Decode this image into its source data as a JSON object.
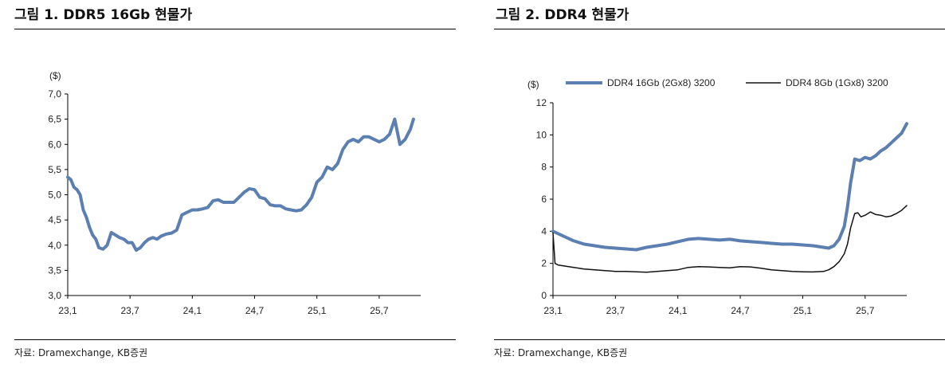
{
  "left": {
    "title": "그림 1. DDR5 16Gb 현물가",
    "source": "자료: Dramexchange, KB증권"
  },
  "right": {
    "title": "그림 2. DDR4 현물가",
    "source": "자료: Dramexchange, KB증권"
  },
  "colors": {
    "primary": "#5b7fb0",
    "secondary": "#111111",
    "axis": "#000000"
  },
  "chart_data": [
    {
      "type": "line",
      "title": "그림 1. DDR5 16Gb 현물가",
      "ylabel": "($)",
      "ylim": [
        3.0,
        7.0
      ],
      "yticks": [
        "3,0",
        "3,5",
        "4,0",
        "4,5",
        "5,0",
        "5,5",
        "6,0",
        "6,5",
        "7,0"
      ],
      "yticks_values": [
        3.0,
        3.5,
        4.0,
        4.5,
        5.0,
        5.5,
        6.0,
        6.5,
        7.0
      ],
      "xlim": [
        0,
        34
      ],
      "xticks": [
        "23,1",
        "23,7",
        "24,1",
        "24,7",
        "25,1",
        "25,7"
      ],
      "xticks_values": [
        0,
        6,
        12,
        18,
        24,
        30
      ],
      "series": [
        {
          "name": "DDR5 16Gb",
          "color": "#5b7fb0",
          "x": [
            0,
            0.3,
            0.6,
            0.9,
            1.2,
            1.5,
            1.8,
            2.1,
            2.4,
            2.7,
            3.0,
            3.4,
            3.8,
            4.2,
            4.6,
            5.0,
            5.4,
            5.8,
            6.2,
            6.6,
            7.0,
            7.4,
            7.8,
            8.2,
            8.6,
            9.0,
            9.5,
            10.0,
            10.5,
            11.0,
            11.5,
            12.0,
            12.5,
            13.0,
            13.5,
            14.0,
            14.5,
            15.0,
            15.5,
            16.0,
            16.5,
            17.0,
            17.5,
            18.0,
            18.5,
            19.0,
            19.5,
            20.0,
            20.5,
            21.0,
            21.5,
            22.0,
            22.5,
            23.0,
            23.5,
            24.0,
            24.5,
            25.0,
            25.5,
            26.0,
            26.5,
            27.0,
            27.5,
            28.0,
            28.5,
            29.0,
            29.5,
            30.0,
            30.5,
            31.0,
            31.5,
            32.0,
            32.5,
            33.0,
            33.3
          ],
          "values": [
            5.35,
            5.3,
            5.15,
            5.1,
            5.0,
            4.7,
            4.55,
            4.35,
            4.2,
            4.12,
            3.95,
            3.92,
            4.0,
            4.25,
            4.2,
            4.15,
            4.12,
            4.05,
            4.05,
            3.9,
            3.95,
            4.05,
            4.12,
            4.15,
            4.12,
            4.18,
            4.22,
            4.24,
            4.3,
            4.6,
            4.65,
            4.7,
            4.7,
            4.72,
            4.75,
            4.88,
            4.9,
            4.85,
            4.85,
            4.85,
            4.95,
            5.05,
            5.12,
            5.1,
            4.95,
            4.92,
            4.8,
            4.78,
            4.78,
            4.72,
            4.7,
            4.68,
            4.7,
            4.8,
            4.95,
            5.25,
            5.35,
            5.55,
            5.5,
            5.62,
            5.9,
            6.05,
            6.1,
            6.05,
            6.15,
            6.15,
            6.1,
            6.05,
            6.1,
            6.2,
            6.5,
            6.0,
            6.1,
            6.3,
            6.5
          ]
        }
      ]
    },
    {
      "type": "line",
      "title": "그림 2. DDR4 현물가",
      "ylabel": "($)",
      "ylim": [
        0,
        12
      ],
      "yticks": [
        "0",
        "2",
        "4",
        "6",
        "8",
        "10",
        "12"
      ],
      "yticks_values": [
        0,
        2,
        4,
        6,
        8,
        10,
        12
      ],
      "xlim": [
        0,
        34
      ],
      "xticks": [
        "23,1",
        "23,7",
        "24,1",
        "24,7",
        "25,1",
        "25,7"
      ],
      "xticks_values": [
        0,
        6,
        12,
        18,
        24,
        30
      ],
      "legend": [
        "DDR4 16Gb (2Gx8) 3200",
        "DDR4 8Gb (1Gx8) 3200"
      ],
      "series": [
        {
          "name": "DDR4 16Gb (2Gx8) 3200",
          "color": "#5b7fb0",
          "width": 4,
          "x": [
            0,
            1,
            2,
            3,
            4,
            5,
            6,
            7,
            8,
            9,
            10,
            11,
            12,
            13,
            14,
            15,
            16,
            17,
            18,
            19,
            20,
            21,
            22,
            23,
            24,
            25,
            26,
            26.5,
            27,
            27.5,
            28,
            28.3,
            28.6,
            29,
            29.5,
            30,
            30.5,
            31,
            31.5,
            32,
            32.5,
            33,
            33.5,
            34
          ],
          "values": [
            4.0,
            3.7,
            3.4,
            3.2,
            3.1,
            3.0,
            2.95,
            2.9,
            2.85,
            3.0,
            3.1,
            3.2,
            3.35,
            3.5,
            3.55,
            3.5,
            3.45,
            3.5,
            3.4,
            3.35,
            3.3,
            3.25,
            3.2,
            3.2,
            3.15,
            3.1,
            3.0,
            2.95,
            3.1,
            3.5,
            4.3,
            5.5,
            7.0,
            8.5,
            8.4,
            8.6,
            8.5,
            8.7,
            9.0,
            9.2,
            9.5,
            9.8,
            10.1,
            10.7
          ]
        },
        {
          "name": "DDR4 8Gb (1Gx8) 3200",
          "color": "#111111",
          "width": 1.5,
          "x": [
            0,
            0.2,
            0.5,
            1,
            2,
            3,
            4,
            5,
            6,
            7,
            8,
            9,
            10,
            11,
            12,
            13,
            14,
            15,
            16,
            17,
            18,
            19,
            20,
            21,
            22,
            23,
            24,
            25,
            26,
            26.5,
            27,
            27.5,
            28,
            28.3,
            28.6,
            29,
            29.3,
            29.6,
            30,
            30.5,
            31,
            31.5,
            32,
            32.5,
            33,
            33.5,
            34
          ],
          "values": [
            3.9,
            2.0,
            1.9,
            1.85,
            1.75,
            1.65,
            1.6,
            1.55,
            1.5,
            1.5,
            1.48,
            1.45,
            1.5,
            1.55,
            1.6,
            1.75,
            1.8,
            1.78,
            1.75,
            1.72,
            1.8,
            1.78,
            1.7,
            1.6,
            1.55,
            1.5,
            1.48,
            1.47,
            1.5,
            1.6,
            1.8,
            2.1,
            2.6,
            3.2,
            4.2,
            5.1,
            5.15,
            4.9,
            5.0,
            5.2,
            5.05,
            5.0,
            4.9,
            4.95,
            5.1,
            5.3,
            5.6
          ]
        }
      ]
    }
  ]
}
